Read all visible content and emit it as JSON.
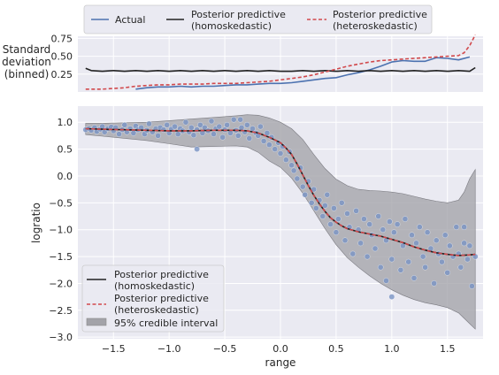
{
  "chart_data": [
    {
      "type": "line",
      "panel": "top",
      "ylabel_lines": [
        "Standard",
        "deviation",
        "(binned)"
      ],
      "yticks": [
        "0.25",
        "0.50",
        "0.75"
      ],
      "ylim": [
        0.0,
        0.78
      ],
      "xlim": [
        -1.82,
        1.82
      ],
      "grid": true,
      "legend_position": "top, outside, 3 columns",
      "legend": [
        {
          "name": "Actual",
          "line1": "Actual",
          "line2": "",
          "color": "#4c72b0",
          "style": "solid"
        },
        {
          "name": "Posterior predictive (homoskedastic)",
          "line1": "Posterior predictive",
          "line2": "(homoskedastic)",
          "color": "#222222",
          "style": "solid"
        },
        {
          "name": "Posterior predictive (heteroskedastic)",
          "line1": "Posterior predictive",
          "line2": "(heteroskedastic)",
          "color": "#d1494c",
          "style": "dashed"
        }
      ],
      "series": [
        {
          "name": "Actual",
          "color": "#4c72b0",
          "style": "solid",
          "x": [
            -1.3,
            -1.2,
            -1.1,
            -1.0,
            -0.9,
            -0.8,
            -0.7,
            -0.6,
            -0.5,
            -0.4,
            -0.3,
            -0.2,
            -0.1,
            0.0,
            0.1,
            0.2,
            0.3,
            0.4,
            0.5,
            0.6,
            0.7,
            0.8,
            0.9,
            1.0,
            1.1,
            1.2,
            1.3,
            1.4,
            1.5,
            1.6,
            1.7
          ],
          "values": [
            0.04,
            0.06,
            0.07,
            0.07,
            0.08,
            0.07,
            0.08,
            0.08,
            0.09,
            0.1,
            0.1,
            0.11,
            0.12,
            0.12,
            0.13,
            0.15,
            0.17,
            0.19,
            0.2,
            0.24,
            0.27,
            0.31,
            0.36,
            0.42,
            0.44,
            0.43,
            0.43,
            0.48,
            0.47,
            0.45,
            0.49
          ]
        },
        {
          "name": "Posterior predictive (homoskedastic)",
          "color": "#222222",
          "style": "solid",
          "x": [
            -1.75,
            -1.7,
            -1.6,
            -1.5,
            -1.4,
            -1.3,
            -1.2,
            -1.1,
            -1.0,
            -0.9,
            -0.8,
            -0.7,
            -0.6,
            -0.5,
            -0.4,
            -0.3,
            -0.2,
            -0.1,
            0.0,
            0.1,
            0.2,
            0.3,
            0.4,
            0.5,
            0.6,
            0.7,
            0.8,
            0.9,
            1.0,
            1.1,
            1.2,
            1.3,
            1.4,
            1.5,
            1.6,
            1.7,
            1.75
          ],
          "values": [
            0.33,
            0.3,
            0.29,
            0.3,
            0.29,
            0.3,
            0.29,
            0.3,
            0.29,
            0.3,
            0.29,
            0.3,
            0.29,
            0.3,
            0.29,
            0.3,
            0.29,
            0.3,
            0.29,
            0.29,
            0.3,
            0.29,
            0.3,
            0.29,
            0.3,
            0.29,
            0.3,
            0.29,
            0.3,
            0.29,
            0.3,
            0.29,
            0.3,
            0.29,
            0.3,
            0.29,
            0.34
          ]
        },
        {
          "name": "Posterior predictive (heteroskedastic)",
          "color": "#d1494c",
          "style": "dashed",
          "x": [
            -1.75,
            -1.6,
            -1.5,
            -1.4,
            -1.3,
            -1.2,
            -1.1,
            -1.0,
            -0.9,
            -0.8,
            -0.7,
            -0.6,
            -0.5,
            -0.4,
            -0.3,
            -0.2,
            -0.1,
            0.0,
            0.1,
            0.2,
            0.3,
            0.4,
            0.5,
            0.6,
            0.7,
            0.8,
            0.9,
            1.0,
            1.1,
            1.2,
            1.3,
            1.4,
            1.5,
            1.6,
            1.65,
            1.7,
            1.75
          ],
          "values": [
            0.04,
            0.04,
            0.05,
            0.06,
            0.08,
            0.09,
            0.1,
            0.1,
            0.11,
            0.11,
            0.11,
            0.12,
            0.12,
            0.12,
            0.13,
            0.14,
            0.15,
            0.17,
            0.19,
            0.21,
            0.24,
            0.28,
            0.32,
            0.36,
            0.39,
            0.42,
            0.44,
            0.45,
            0.46,
            0.47,
            0.48,
            0.49,
            0.5,
            0.51,
            0.55,
            0.65,
            0.8
          ]
        }
      ]
    },
    {
      "type": "scatter",
      "panel": "bottom",
      "xlabel": "range",
      "ylabel": "logratio",
      "xticks": [
        "−1.5",
        "−1.0",
        "−0.5",
        "0.0",
        "0.5",
        "1.0",
        "1.5"
      ],
      "yticks": [
        "1.0",
        "0.5",
        "0.0",
        "−0.5",
        "−1.0",
        "−1.5",
        "−2.0",
        "−2.5",
        "−3.0"
      ],
      "xlim": [
        -1.82,
        1.82
      ],
      "ylim": [
        -3.03,
        1.3
      ],
      "grid": true,
      "legend_position": "lower-left",
      "legend": [
        {
          "name": "Posterior predictive (homoskedastic)",
          "line1": "Posterior predictive",
          "line2": "(homoskedastic)"
        },
        {
          "name": "Posterior predictive (heteroskedastic)",
          "line1": "Posterior predictive",
          "line2": "(heteroskedastic)"
        },
        {
          "name": "95% credible interval",
          "line1": "95% credible interval",
          "line2": ""
        }
      ],
      "mean_curve": {
        "name": "Posterior predictive (homoskedastic)",
        "x": [
          -1.75,
          -1.6,
          -1.4,
          -1.2,
          -1.0,
          -0.8,
          -0.6,
          -0.4,
          -0.3,
          -0.2,
          -0.1,
          0.0,
          0.05,
          0.1,
          0.15,
          0.2,
          0.25,
          0.3,
          0.35,
          0.4,
          0.45,
          0.5,
          0.55,
          0.6,
          0.7,
          0.8,
          0.9,
          1.0,
          1.1,
          1.2,
          1.3,
          1.4,
          1.5,
          1.6,
          1.7,
          1.75
        ],
        "values": [
          0.88,
          0.87,
          0.86,
          0.85,
          0.84,
          0.84,
          0.85,
          0.85,
          0.84,
          0.8,
          0.72,
          0.62,
          0.52,
          0.4,
          0.22,
          0.02,
          -0.18,
          -0.36,
          -0.52,
          -0.66,
          -0.78,
          -0.86,
          -0.93,
          -0.98,
          -1.04,
          -1.08,
          -1.12,
          -1.18,
          -1.24,
          -1.32,
          -1.38,
          -1.43,
          -1.46,
          -1.48,
          -1.47,
          -1.46
        ]
      },
      "interval_95": {
        "name": "95% credible interval",
        "x": [
          -1.75,
          -1.6,
          -1.4,
          -1.2,
          -1.0,
          -0.8,
          -0.6,
          -0.4,
          -0.3,
          -0.2,
          -0.1,
          0.0,
          0.1,
          0.2,
          0.3,
          0.4,
          0.5,
          0.6,
          0.7,
          0.8,
          0.9,
          1.0,
          1.1,
          1.2,
          1.3,
          1.4,
          1.5,
          1.6,
          1.65,
          1.7,
          1.75
        ],
        "upper": [
          0.98,
          0.98,
          0.99,
          1.0,
          1.03,
          1.06,
          1.09,
          1.12,
          1.14,
          1.13,
          1.08,
          1.0,
          0.88,
          0.68,
          0.4,
          0.14,
          -0.06,
          -0.18,
          -0.25,
          -0.27,
          -0.28,
          -0.3,
          -0.33,
          -0.38,
          -0.43,
          -0.47,
          -0.5,
          -0.45,
          -0.3,
          -0.05,
          0.12
        ],
        "lower": [
          0.77,
          0.74,
          0.7,
          0.66,
          0.6,
          0.54,
          0.55,
          0.56,
          0.54,
          0.44,
          0.28,
          0.16,
          -0.04,
          -0.32,
          -0.65,
          -0.98,
          -1.28,
          -1.52,
          -1.7,
          -1.86,
          -2.0,
          -2.12,
          -2.22,
          -2.3,
          -2.36,
          -2.4,
          -2.45,
          -2.55,
          -2.65,
          -2.75,
          -2.85
        ]
      },
      "points": {
        "name": "observations",
        "color": "#7b95c4",
        "x": [
          -1.75,
          -1.72,
          -1.7,
          -1.67,
          -1.65,
          -1.62,
          -1.6,
          -1.58,
          -1.55,
          -1.52,
          -1.5,
          -1.48,
          -1.45,
          -1.42,
          -1.4,
          -1.38,
          -1.35,
          -1.32,
          -1.3,
          -1.28,
          -1.25,
          -1.22,
          -1.2,
          -1.18,
          -1.15,
          -1.12,
          -1.1,
          -1.08,
          -1.05,
          -1.02,
          -1.0,
          -0.98,
          -0.95,
          -0.92,
          -0.9,
          -0.88,
          -0.85,
          -0.82,
          -0.8,
          -0.78,
          -0.75,
          -0.72,
          -0.7,
          -0.68,
          -0.65,
          -0.62,
          -0.6,
          -0.58,
          -0.55,
          -0.52,
          -0.5,
          -0.48,
          -0.45,
          -0.42,
          -0.4,
          -0.38,
          -0.35,
          -0.32,
          -0.3,
          -0.28,
          -0.25,
          -0.22,
          -0.2,
          -0.18,
          -0.15,
          -0.12,
          -0.1,
          -0.08,
          -0.05,
          -0.02,
          0.0,
          0.02,
          0.05,
          0.08,
          0.1,
          0.12,
          0.15,
          0.18,
          0.2,
          0.22,
          0.25,
          0.28,
          0.3,
          0.32,
          0.35,
          0.38,
          0.4,
          0.42,
          0.45,
          0.48,
          0.5,
          0.52,
          0.55,
          0.58,
          0.6,
          0.62,
          0.65,
          0.68,
          0.7,
          0.72,
          0.75,
          0.78,
          0.8,
          0.82,
          0.85,
          0.88,
          0.9,
          0.92,
          0.95,
          0.98,
          1.0,
          1.02,
          1.05,
          1.08,
          1.1,
          1.12,
          1.15,
          1.18,
          1.2,
          1.22,
          1.25,
          1.28,
          1.3,
          1.32,
          1.35,
          1.38,
          1.4,
          1.42,
          1.45,
          1.48,
          1.5,
          1.52,
          1.55,
          1.58,
          1.6,
          1.62,
          1.65,
          1.68,
          1.7,
          1.72,
          1.75,
          -0.75,
          -0.36,
          1.0,
          0.95,
          1.65
        ],
        "y": [
          0.86,
          0.88,
          0.85,
          0.9,
          0.83,
          0.87,
          0.92,
          0.82,
          0.88,
          0.91,
          0.84,
          0.9,
          0.78,
          0.86,
          0.95,
          0.82,
          0.88,
          0.8,
          0.93,
          0.86,
          0.9,
          0.78,
          0.85,
          0.97,
          0.82,
          0.88,
          0.75,
          0.9,
          0.86,
          0.95,
          0.8,
          0.87,
          0.92,
          0.78,
          0.88,
          0.84,
          1.0,
          0.82,
          0.9,
          0.76,
          0.86,
          0.95,
          0.8,
          0.9,
          0.84,
          1.02,
          0.78,
          0.88,
          0.92,
          0.72,
          0.86,
          0.95,
          0.8,
          1.05,
          0.85,
          0.75,
          0.9,
          0.82,
          0.95,
          0.7,
          0.88,
          0.8,
          0.75,
          0.92,
          0.65,
          0.8,
          0.58,
          0.72,
          0.5,
          0.62,
          0.42,
          0.55,
          0.3,
          0.45,
          0.2,
          0.1,
          -0.05,
          0.15,
          -0.2,
          -0.35,
          -0.1,
          -0.5,
          -0.25,
          -0.6,
          -0.45,
          -0.75,
          -0.55,
          -0.35,
          -0.9,
          -0.6,
          -1.05,
          -0.8,
          -0.5,
          -1.2,
          -0.7,
          -0.95,
          -1.45,
          -0.65,
          -1.0,
          -1.25,
          -0.8,
          -1.5,
          -0.9,
          -1.1,
          -1.35,
          -0.75,
          -1.7,
          -1.0,
          -1.2,
          -0.85,
          -1.55,
          -1.05,
          -0.9,
          -1.75,
          -1.3,
          -0.8,
          -1.6,
          -1.1,
          -1.9,
          -1.25,
          -0.95,
          -1.5,
          -1.7,
          -1.05,
          -1.35,
          -2.0,
          -1.2,
          -1.45,
          -1.6,
          -1.1,
          -1.8,
          -1.3,
          -1.5,
          -0.95,
          -1.45,
          -1.7,
          -1.25,
          -1.55,
          -1.3,
          -2.05,
          -1.5,
          0.5,
          1.05,
          -2.25,
          -1.95,
          -0.95
        ]
      }
    }
  ]
}
